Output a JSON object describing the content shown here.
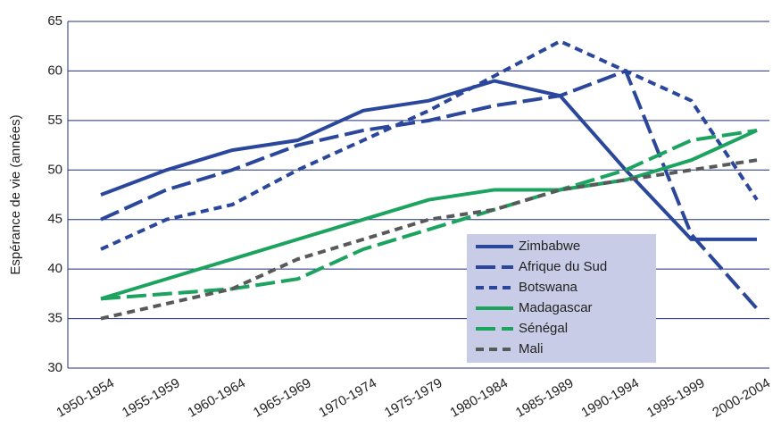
{
  "chart_data": {
    "type": "line",
    "y_label": "Espérance de vie (années)",
    "categories": [
      "1950-1954",
      "1955-1959",
      "1960-1964",
      "1965-1969",
      "1970-1974",
      "1975-1979",
      "1980-1984",
      "1985-1989",
      "1990-1994",
      "1995-1999",
      "2000-2004"
    ],
    "ylim": [
      30,
      65
    ],
    "yticks": [
      30,
      35,
      40,
      45,
      50,
      55,
      60,
      65
    ],
    "grid": true,
    "legend": "lower-right",
    "series": [
      {
        "name": "Zimbabwe",
        "color": "#2b479c",
        "style": "solid",
        "values": [
          47.5,
          50,
          52,
          53,
          56,
          57,
          59,
          57.5,
          50,
          43,
          43
        ]
      },
      {
        "name": "Afrique du Sud",
        "color": "#2b479c",
        "style": "long-dash",
        "values": [
          45,
          48,
          50,
          52.5,
          54,
          55,
          56.5,
          57.5,
          60,
          43.5,
          36
        ]
      },
      {
        "name": "Botswana",
        "color": "#2b479c",
        "style": "dash",
        "values": [
          42,
          45,
          46.5,
          50,
          53,
          56,
          59.5,
          63,
          60,
          57,
          47
        ]
      },
      {
        "name": "Madagascar",
        "color": "#1ba35f",
        "style": "solid",
        "values": [
          37,
          39,
          41,
          43,
          45,
          47,
          48,
          48,
          49,
          51,
          54
        ]
      },
      {
        "name": "Sénégal",
        "color": "#1ba35f",
        "style": "long-dash",
        "values": [
          37,
          37.5,
          38,
          39,
          42,
          44,
          46,
          48,
          50,
          53,
          54
        ]
      },
      {
        "name": "Mali",
        "color": "#58595b",
        "style": "dash",
        "values": [
          35,
          36.5,
          38,
          41,
          43,
          45,
          46,
          48,
          49,
          50,
          51
        ]
      }
    ]
  }
}
